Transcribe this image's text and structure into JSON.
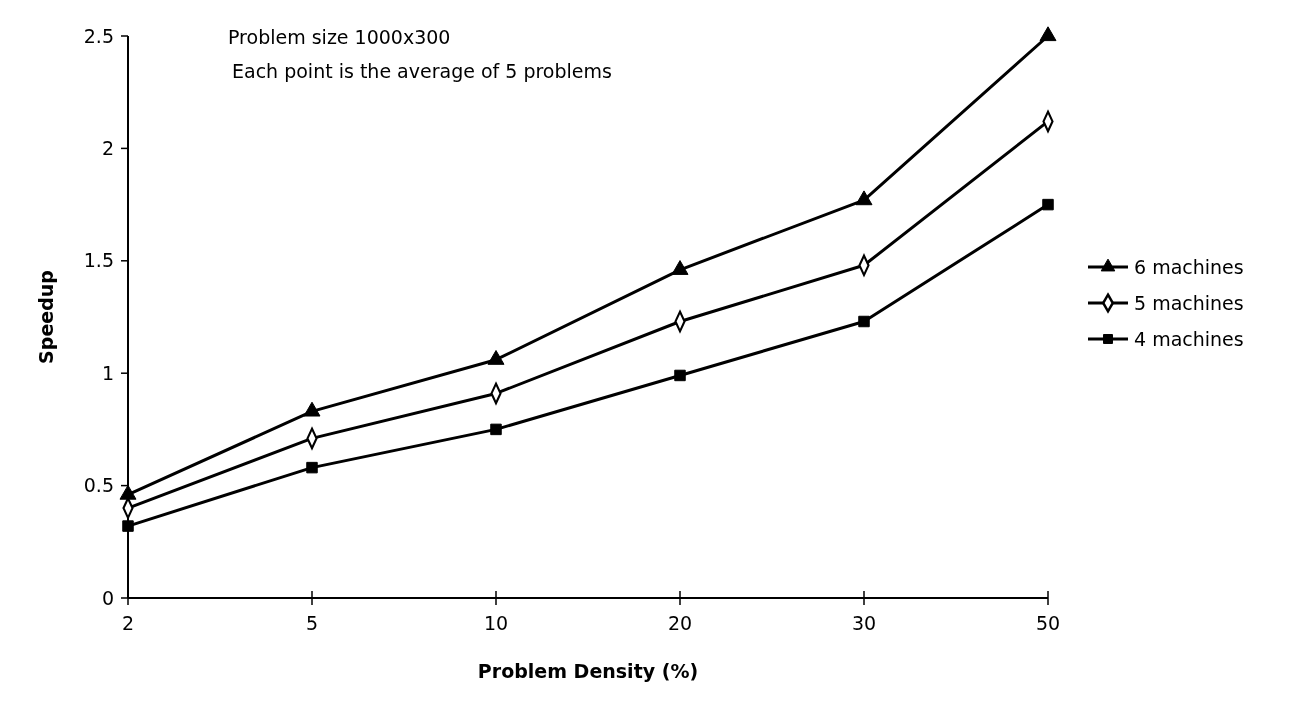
{
  "chart_data": {
    "type": "line",
    "xlabel": "Problem Density (%)",
    "ylabel": "Speedup",
    "annotations": [
      "Problem size 1000x300",
      "Each point is the average of 5 problems"
    ],
    "categories": [
      "2",
      "5",
      "10",
      "20",
      "30",
      "50"
    ],
    "series": [
      {
        "name": "6 machines",
        "color": "#000000",
        "marker": "triangle",
        "values": [
          0.46,
          0.83,
          1.06,
          1.46,
          1.77,
          2.5
        ]
      },
      {
        "name": "5 machines",
        "color": "#000000",
        "marker": "diamond",
        "values": [
          0.4,
          0.71,
          0.91,
          1.23,
          1.48,
          2.12
        ]
      },
      {
        "name": "4 machines",
        "color": "#000000",
        "marker": "square",
        "values": [
          0.32,
          0.58,
          0.75,
          0.99,
          1.23,
          1.75
        ]
      }
    ],
    "ylim": [
      0,
      2.5
    ],
    "yticks": [
      0,
      0.5,
      1,
      1.5,
      2,
      2.5
    ],
    "grid": false,
    "legend": "right"
  }
}
